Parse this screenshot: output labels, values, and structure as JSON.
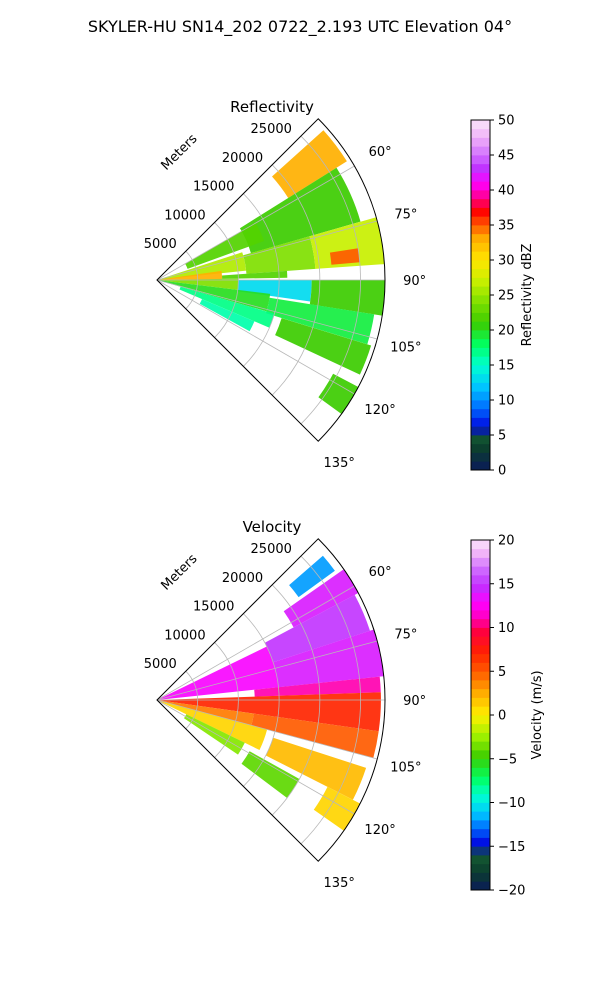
{
  "figure": {
    "title": "SKYLER-HU  SN14_202  0722_2.193 UTC Elevation 04°"
  },
  "chart_data": [
    {
      "type": "heatmap",
      "projection": "polar-sector",
      "title": "Reflectivity",
      "radial_label": "Meters",
      "r_range": [
        0,
        28000
      ],
      "r_ticks": [
        5000,
        10000,
        15000,
        20000,
        25000
      ],
      "r_tick_labels": [
        "5000",
        "10000",
        "15000",
        "20000",
        "25000"
      ],
      "theta_range_deg": [
        45,
        135
      ],
      "theta_ticks_deg": [
        60,
        75,
        90,
        105,
        120,
        135
      ],
      "theta_tick_labels": [
        "60°",
        "75°",
        "90°",
        "105°",
        "120°",
        "135°"
      ],
      "grid": true,
      "colorbar": {
        "label": "Reflectivity dBZ",
        "range": [
          0,
          50
        ],
        "ticks": [
          "0",
          "5",
          "10",
          "15",
          "20",
          "25",
          "30",
          "35",
          "40",
          "45",
          "50"
        ]
      },
      "echo_cells": [
        {
          "theta": [
            48,
            58
          ],
          "r": [
            19000,
            27500
          ],
          "value": 33
        },
        {
          "theta": [
            58,
            74
          ],
          "r": [
            12000,
            26000
          ],
          "value": 21
        },
        {
          "theta": [
            60,
            70
          ],
          "r": [
            4000,
            14000
          ],
          "value": 22
        },
        {
          "theta": [
            72,
            84
          ],
          "r": [
            0,
            11000
          ],
          "value": 26
        },
        {
          "theta": [
            74,
            86
          ],
          "r": [
            11000,
            19500
          ],
          "value": 24
        },
        {
          "theta": [
            74,
            86
          ],
          "r": [
            19500,
            28000
          ],
          "value": 27
        },
        {
          "theta": [
            81,
            85
          ],
          "r": [
            21500,
            25000
          ],
          "value": 35
        },
        {
          "theta": [
            82,
            90
          ],
          "r": [
            0,
            8000
          ],
          "value": 33
        },
        {
          "theta": [
            86,
            89
          ],
          "r": [
            8000,
            16000
          ],
          "value": 22
        },
        {
          "theta": [
            89,
            97
          ],
          "r": [
            0,
            10000
          ],
          "value": 24
        },
        {
          "theta": [
            90,
            98
          ],
          "r": [
            10000,
            19000
          ],
          "value": 13
        },
        {
          "theta": [
            90,
            99
          ],
          "r": [
            19000,
            28000
          ],
          "value": 21
        },
        {
          "theta": [
            97,
            106
          ],
          "r": [
            0,
            14000
          ],
          "value": 20
        },
        {
          "theta": [
            99,
            107
          ],
          "r": [
            14000,
            27000
          ],
          "value": 19
        },
        {
          "theta": [
            106,
            113
          ],
          "r": [
            3000,
            15000
          ],
          "value": 17
        },
        {
          "theta": [
            107,
            115
          ],
          "r": [
            16000,
            27500
          ],
          "value": 21
        },
        {
          "theta": [
            113,
            119
          ],
          "r": [
            6000,
            13000
          ],
          "value": 16
        },
        {
          "theta": [
            118,
            126
          ],
          "r": [
            24500,
            28000
          ],
          "value": 21
        }
      ]
    },
    {
      "type": "heatmap",
      "projection": "polar-sector",
      "title": "Velocity",
      "radial_label": "Meters",
      "r_range": [
        0,
        28000
      ],
      "r_ticks": [
        5000,
        10000,
        15000,
        20000,
        25000
      ],
      "r_tick_labels": [
        "5000",
        "10000",
        "15000",
        "20000",
        "25000"
      ],
      "theta_range_deg": [
        45,
        135
      ],
      "theta_ticks_deg": [
        60,
        75,
        90,
        105,
        120,
        135
      ],
      "theta_tick_labels": [
        "60°",
        "75°",
        "90°",
        "105°",
        "120°",
        "135°"
      ],
      "grid": true,
      "colorbar": {
        "label": "Velocity (m/s)",
        "range": [
          -20,
          20
        ],
        "ticks": [
          "−20",
          "−15",
          "−10",
          "−5",
          "0",
          "5",
          "10",
          "15",
          "20"
        ]
      },
      "echo_cells": [
        {
          "theta": [
            49,
            54
          ],
          "r": [
            21500,
            27000
          ],
          "value": -12
        },
        {
          "theta": [
            55,
            62
          ],
          "r": [
            19000,
            28000
          ],
          "value": 14
        },
        {
          "theta": [
            62,
            72
          ],
          "r": [
            15000,
            27500
          ],
          "value": 15
        },
        {
          "theta": [
            64,
            84
          ],
          "r": [
            0,
            15000
          ],
          "value": 13
        },
        {
          "theta": [
            72,
            84
          ],
          "r": [
            15000,
            28000
          ],
          "value": 14
        },
        {
          "theta": [
            84,
            88
          ],
          "r": [
            12000,
            27500
          ],
          "value": 11
        },
        {
          "theta": [
            88,
            98
          ],
          "r": [
            0,
            27500
          ],
          "value": 7
        },
        {
          "theta": [
            98,
            105
          ],
          "r": [
            0,
            12000
          ],
          "value": 4
        },
        {
          "theta": [
            98,
            105
          ],
          "r": [
            12000,
            27500
          ],
          "value": 5
        },
        {
          "theta": [
            105,
            116
          ],
          "r": [
            0,
            14000
          ],
          "value": 1
        },
        {
          "theta": [
            108,
            117
          ],
          "r": [
            15000,
            27000
          ],
          "value": 2
        },
        {
          "theta": [
            116,
            124
          ],
          "r": [
            4000,
            12000
          ],
          "value": -3
        },
        {
          "theta": [
            119,
            127
          ],
          "r": [
            13000,
            20000
          ],
          "value": -4
        },
        {
          "theta": [
            117,
            125
          ],
          "r": [
            23500,
            28000
          ],
          "value": 1
        }
      ]
    }
  ]
}
